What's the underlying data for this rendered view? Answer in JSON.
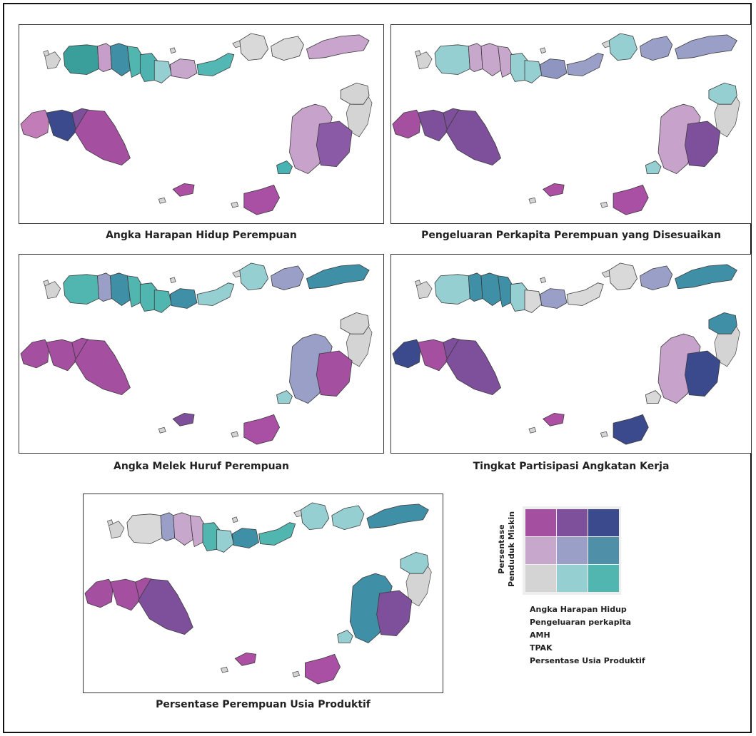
{
  "panels": [
    {
      "caption": "Angka Harapan Hidup Perempuan",
      "colors": [
        "#3a9e9b",
        "#c79ec9",
        "#3f8fa6",
        "#52b6b0",
        "#4eb3b0",
        "#96cfd1",
        "#c8a7cc",
        "#53b8b3",
        "#d9d9d9",
        "#d9d9d9",
        "#c9a4cd",
        "#c27db8",
        "#3b4a8c",
        "#7e4f9a",
        "#a44fa0",
        "#c7a3cc",
        "#8b5aa6",
        "#d4d4d4",
        "#a94fa4",
        "#49b3b3",
        "#ad4fa2"
      ]
    },
    {
      "caption": "Pengeluaran Perkapita Perempuan yang Disesuaikan",
      "colors": [
        "#96cfd1",
        "#c8a7cc",
        "#c8a7cc",
        "#c8a7cc",
        "#96cfd1",
        "#96cfd1",
        "#8e95c0",
        "#9a9fc8",
        "#96cfd1",
        "#9a9fc8",
        "#9a9fc8",
        "#a44fa0",
        "#7e4f9a",
        "#7e4f9a",
        "#7e4f9a",
        "#c7a3cc",
        "#7e4f9a",
        "#96cfd1",
        "#a94fa4",
        "#96cfd1",
        "#ad4fa2"
      ]
    },
    {
      "caption": "Angka Melek Huruf Perempuan",
      "colors": [
        "#52b6b0",
        "#9a9fc8",
        "#3f8fa6",
        "#52b6b0",
        "#52b6b0",
        "#52b6b0",
        "#3f8fa6",
        "#96cfd1",
        "#96cfd1",
        "#9a9fc8",
        "#3f8fa6",
        "#a44fa0",
        "#a44fa0",
        "#a44fa0",
        "#a44fa0",
        "#9a9fc8",
        "#a44fa0",
        "#d4d4d4",
        "#a94fa4",
        "#96cfd1",
        "#7e4f9a"
      ]
    },
    {
      "caption": "Tingkat Partisipasi Angkatan Kerja",
      "colors": [
        "#96cfd1",
        "#3f8fa6",
        "#3f8fa6",
        "#3f8fa6",
        "#96cfd1",
        "#d9d9d9",
        "#9a9fc8",
        "#d9d9d9",
        "#d9d9d9",
        "#9a9fc8",
        "#3f8fa6",
        "#3b4a8c",
        "#a44fa0",
        "#7e4f9a",
        "#7e4f9a",
        "#c7a3cc",
        "#3b4a8c",
        "#3f8fa6",
        "#3b4a8c",
        "#d9d9d9",
        "#ad4fa2"
      ]
    },
    {
      "caption": "Persentase Perempuan Usia Produktif",
      "colors": [
        "#d9d9d9",
        "#9a9fc8",
        "#c8a7cc",
        "#c8a7cc",
        "#52b6b0",
        "#96cfd1",
        "#3f8fa6",
        "#52b6b0",
        "#96cfd1",
        "#96cfd1",
        "#3f8fa6",
        "#a44fa0",
        "#a44fa0",
        "#a44fa0",
        "#7e4f9a",
        "#3f8fa6",
        "#7e4f9a",
        "#96cfd1",
        "#a94fa4",
        "#96cfd1",
        "#ad4fa2"
      ]
    }
  ],
  "legend": {
    "y_label_line1": "Persentase",
    "y_label_line2": "Penduduk Miskin",
    "grid_colors": [
      [
        "#a44fa0",
        "#7e4f9a",
        "#3b4a8c"
      ],
      [
        "#c8a7cc",
        "#9a9fc8",
        "#4f8fa8"
      ],
      [
        "#d4d4d4",
        "#96cfd1",
        "#52b6b0"
      ]
    ],
    "variables": [
      "Angka Harapan Hidup",
      "Pengeluaran perkapita",
      "AMH",
      "TPAK",
      "Persentase Usia Produktif"
    ]
  }
}
